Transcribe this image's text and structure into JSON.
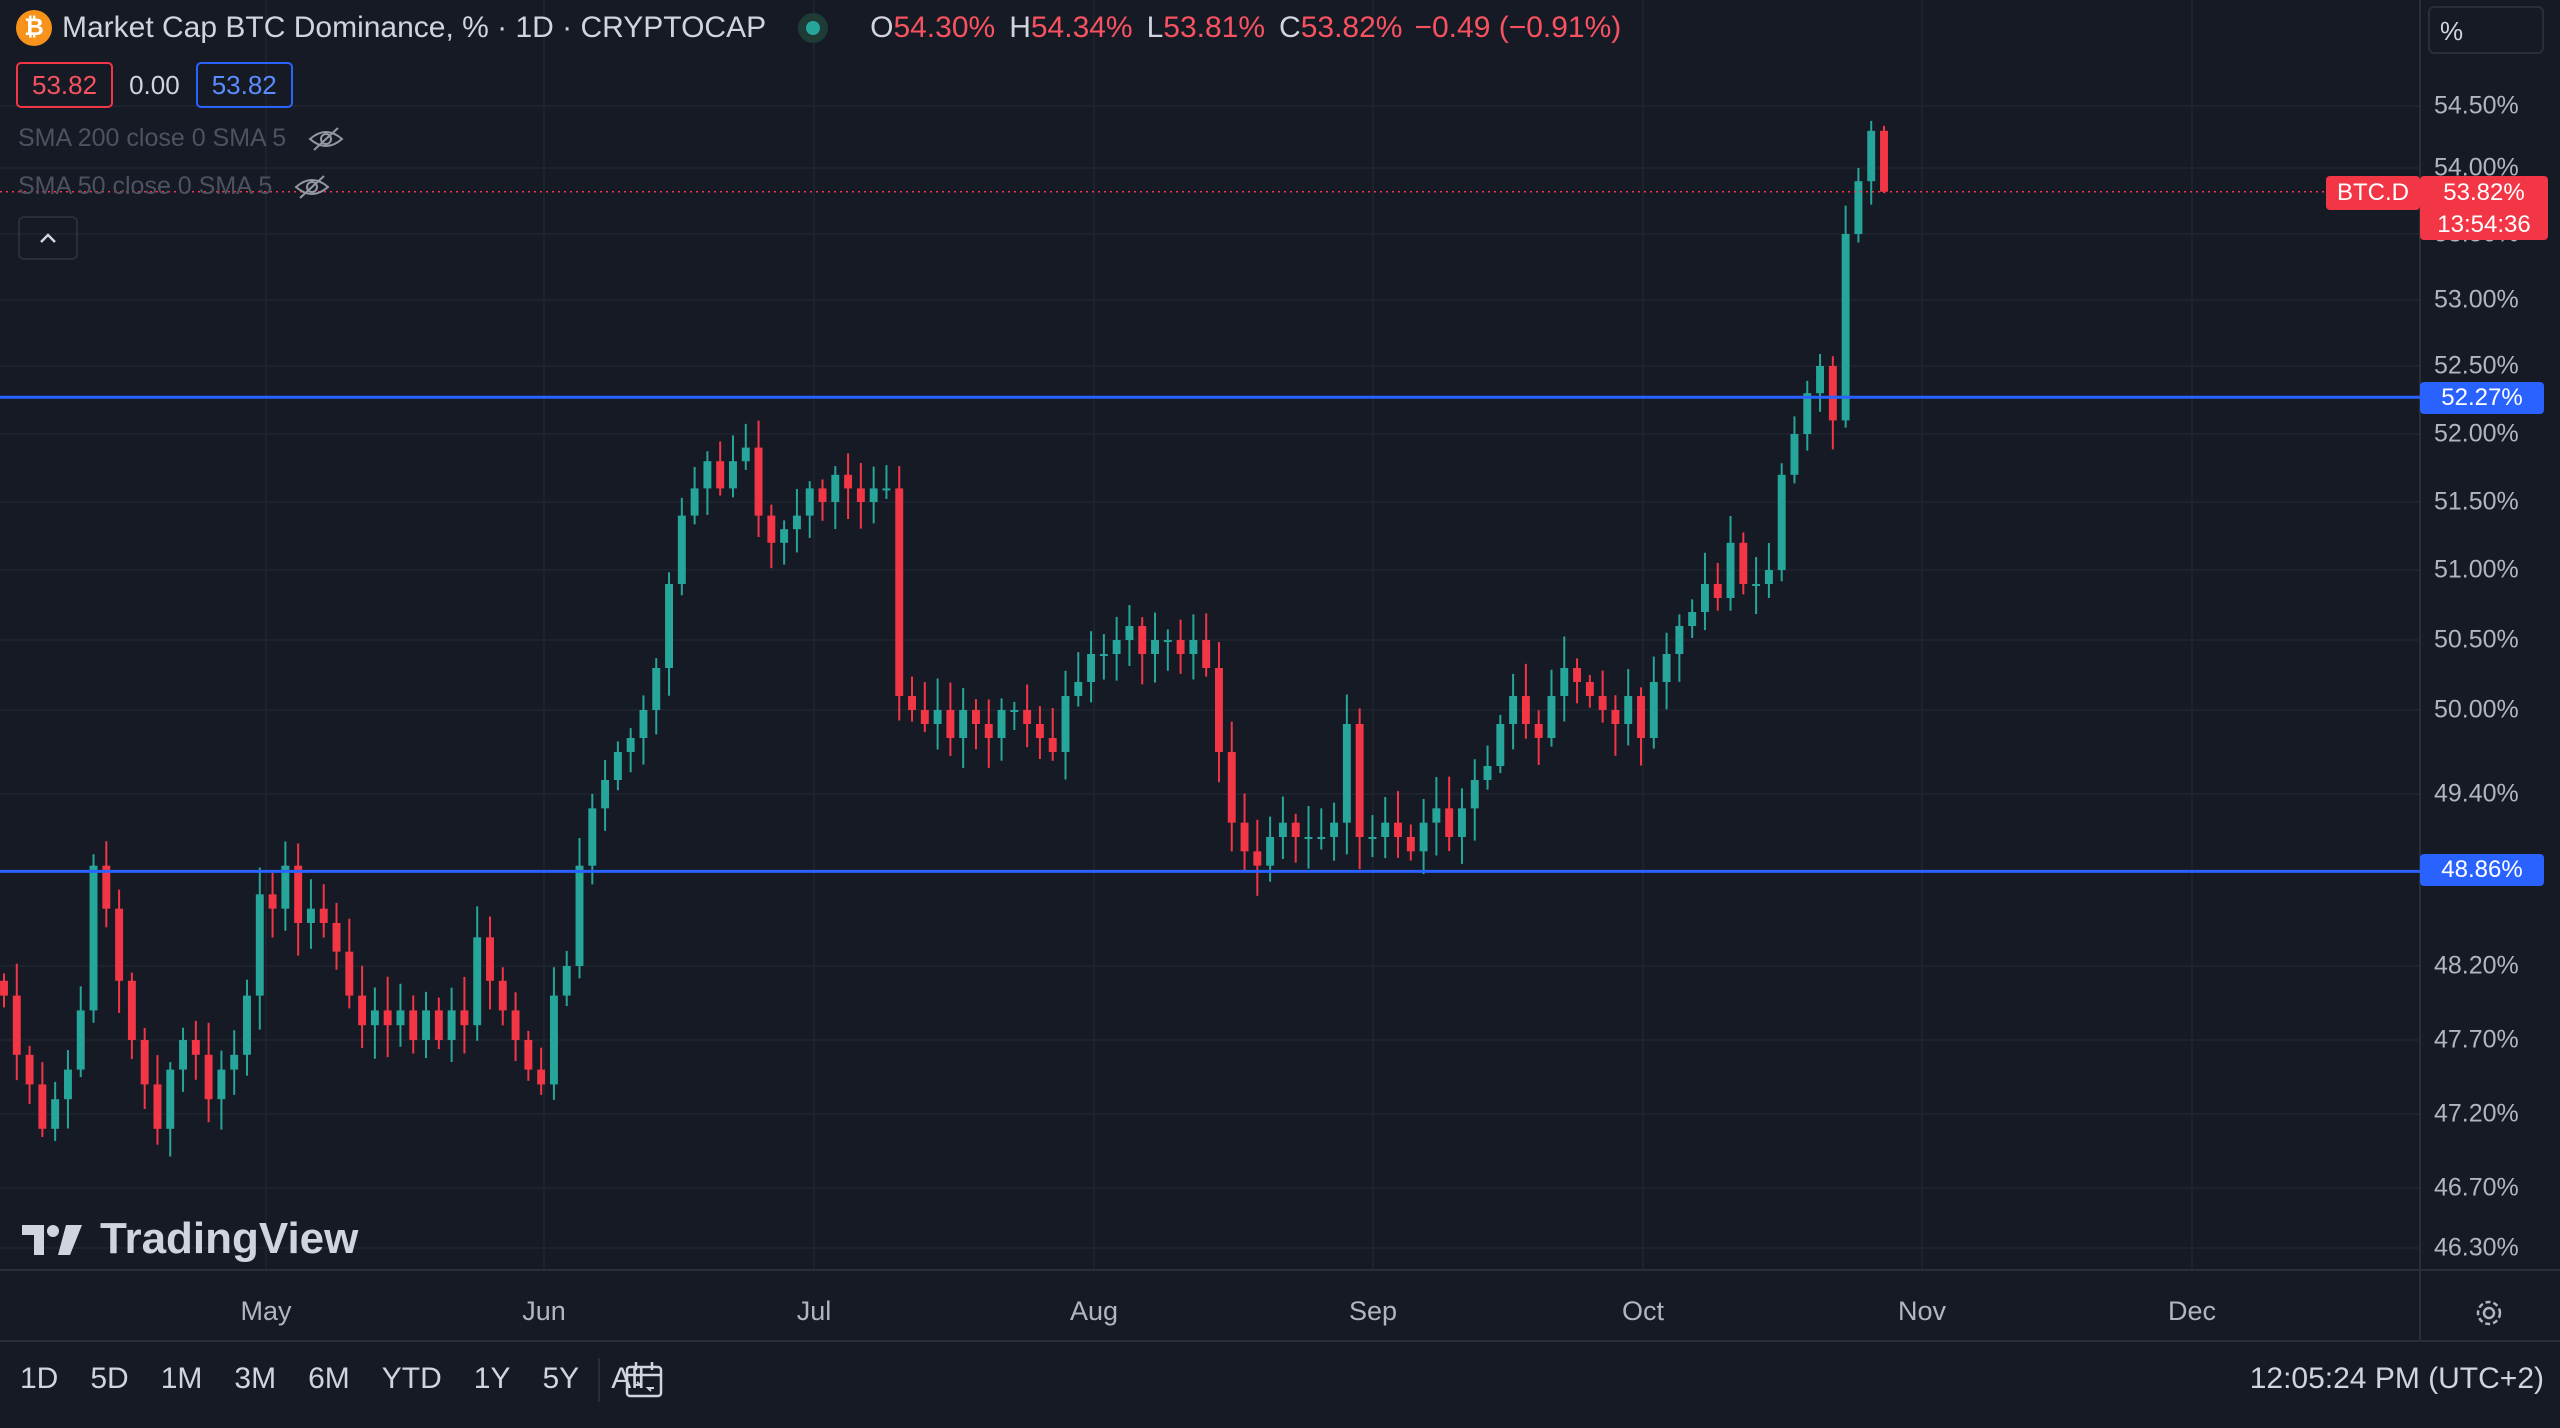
{
  "header": {
    "logo_letter": "₿",
    "title": "Market Cap BTC Dominance, % · 1D · CRYPTOCAP",
    "ohlc": [
      {
        "key": "O",
        "value": "54.30%"
      },
      {
        "key": "H",
        "value": "54.34%"
      },
      {
        "key": "L",
        "value": "53.81%"
      },
      {
        "key": "C",
        "value": "53.82%"
      }
    ],
    "change": "−0.49 (−0.91%)"
  },
  "price_boxes": {
    "bid": "53.82",
    "spread": "0.00",
    "ask": "53.82"
  },
  "indicators": [
    {
      "label": "SMA 200 close 0 SMA 5"
    },
    {
      "label": "SMA 50 close 0 SMA 5"
    }
  ],
  "scale_mode": "%",
  "bottom": {
    "timeframes": [
      "1D",
      "5D",
      "1M",
      "3M",
      "6M",
      "YTD",
      "1Y",
      "5Y",
      "All"
    ],
    "clock": "12:05:24 PM (UTC+2)"
  },
  "brand": "TradingView",
  "colors": {
    "background": "#161a25",
    "up": "#26a69a",
    "down": "#f23645",
    "hline": "#2962ff",
    "grid": "#1e222d"
  },
  "chart_data": {
    "type": "candlestick",
    "title": "Market Cap BTC Dominance, %",
    "timeframe": "1D",
    "yaxis": {
      "ticks": [
        "54.50%",
        "54.00%",
        "53.50%",
        "53.00%",
        "52.50%",
        "52.00%",
        "51.50%",
        "51.00%",
        "50.50%",
        "50.00%",
        "49.40%",
        "48.20%",
        "47.70%",
        "47.20%",
        "46.70%",
        "46.30%"
      ],
      "tick_values": [
        54.5,
        54.0,
        53.5,
        53.0,
        52.5,
        52.0,
        51.5,
        51.0,
        50.5,
        50.0,
        49.4,
        48.2,
        47.7,
        47.2,
        46.7,
        46.3
      ],
      "range": [
        46.0,
        55.2
      ]
    },
    "xaxis": {
      "labels": [
        "May",
        "Jun",
        "Jul",
        "Aug",
        "Sep",
        "Oct",
        "Nov",
        "Dec"
      ]
    },
    "horizontal_lines": [
      {
        "value": 52.27,
        "label": "52.27%"
      },
      {
        "value": 48.86,
        "label": "48.86%"
      }
    ],
    "last_price": {
      "symbol": "BTC.D",
      "value": 53.82,
      "label": "53.82%",
      "countdown": "13:54:36"
    },
    "series": [
      {
        "name": "BTC.D",
        "x_start": "2024-04-15",
        "close": [
          48.0,
          47.6,
          47.4,
          47.1,
          47.3,
          47.5,
          47.9,
          48.9,
          48.6,
          48.1,
          47.7,
          47.4,
          47.1,
          47.5,
          47.7,
          47.6,
          47.3,
          47.5,
          47.6,
          48.0,
          48.7,
          48.6,
          48.9,
          48.5,
          48.6,
          48.5,
          48.3,
          48.0,
          47.8,
          47.9,
          47.8,
          47.9,
          47.7,
          47.9,
          47.7,
          47.9,
          47.8,
          48.4,
          48.1,
          47.9,
          47.7,
          47.5,
          47.4,
          48.0,
          48.2,
          48.9,
          49.3,
          49.5,
          49.7,
          49.8,
          50.0,
          50.3,
          50.9,
          51.4,
          51.6,
          51.8,
          51.6,
          51.8,
          51.9,
          51.4,
          51.2,
          51.3,
          51.4,
          51.6,
          51.5,
          51.7,
          51.6,
          51.5,
          51.6,
          51.6,
          50.1,
          50.0,
          49.9,
          50.0,
          49.8,
          50.0,
          49.9,
          49.8,
          50.0,
          50.0,
          49.9,
          49.8,
          49.7,
          50.1,
          50.2,
          50.4,
          50.4,
          50.5,
          50.6,
          50.4,
          50.5,
          50.5,
          50.4,
          50.5,
          50.3,
          49.7,
          49.2,
          49.0,
          48.9,
          49.1,
          49.2,
          49.1,
          49.1,
          49.1,
          49.2,
          49.9,
          49.1,
          49.1,
          49.2,
          49.1,
          49.0,
          49.2,
          49.3,
          49.1,
          49.3,
          49.5,
          49.6,
          49.9,
          50.1,
          49.9,
          49.8,
          50.1,
          50.3,
          50.2,
          50.1,
          50.0,
          49.9,
          50.1,
          49.8,
          50.2,
          50.4,
          50.6,
          50.7,
          50.9,
          50.8,
          51.2,
          50.9,
          50.9,
          51.0,
          51.7,
          52.0,
          52.3,
          52.5,
          52.1,
          53.5,
          53.9,
          54.3,
          53.82
        ]
      }
    ]
  }
}
